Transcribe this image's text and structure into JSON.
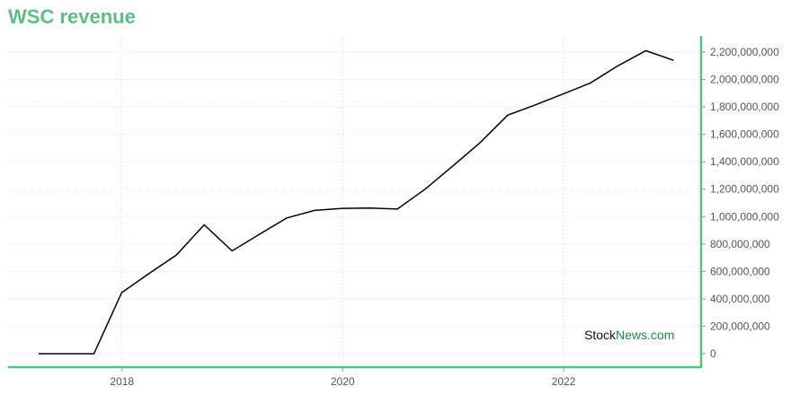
{
  "chart_data": {
    "type": "line",
    "title": "WSC revenue",
    "xlabel": "",
    "ylabel": "",
    "x_ticks": [
      "2018",
      "2020",
      "2022"
    ],
    "x_tick_values": [
      "2018-01-01",
      "2020-01-01",
      "2022-01-01"
    ],
    "y_ticks": [
      "0",
      "200,000,000",
      "400,000,000",
      "600,000,000",
      "800,000,000",
      "1,000,000,000",
      "1,200,000,000",
      "1,400,000,000",
      "1,600,000,000",
      "1,800,000,000",
      "2,000,000,000",
      "2,200,000,000"
    ],
    "ylim": [
      0,
      2300000000
    ],
    "xlim": [
      "2016-12-20",
      "2023-04-01"
    ],
    "y_axis_position": "right",
    "grid": true,
    "line_color": "#000000",
    "accent_color": "#5cbd85",
    "series": [
      {
        "x": [
          "2017-03-31",
          "2017-06-30",
          "2017-09-30",
          "2017-12-31",
          "2018-03-31",
          "2018-06-30",
          "2018-09-30",
          "2018-12-31",
          "2019-03-31",
          "2019-06-30",
          "2019-09-30",
          "2019-12-31",
          "2020-03-31",
          "2020-06-30",
          "2020-09-30",
          "2020-12-31",
          "2021-03-31",
          "2021-06-30",
          "2021-09-30",
          "2021-12-31",
          "2022-03-31",
          "2022-06-30",
          "2022-09-30",
          "2022-12-31"
        ],
        "values": [
          0,
          0,
          0,
          445000000,
          585000000,
          720000000,
          940000000,
          750000000,
          870000000,
          990000000,
          1045000000,
          1060000000,
          1062000000,
          1055000000,
          1200000000,
          1370000000,
          1540000000,
          1740000000,
          1815000000,
          1895000000,
          1975000000,
          2100000000,
          2210000000,
          2140000000
        ]
      }
    ]
  },
  "watermark": {
    "part1": "Stock",
    "part2": "News.com"
  }
}
